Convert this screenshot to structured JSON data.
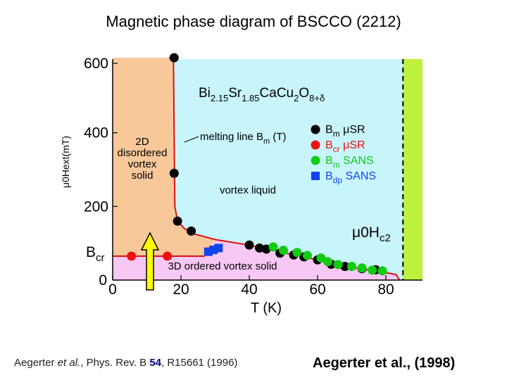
{
  "page": {
    "title": "Magnetic phase diagram of BSCCO (2212)",
    "citation": {
      "authors": "Aegerter ",
      "etal": "et al.",
      "journal": ",  Phys. Rev. B ",
      "volume": "54",
      "pages": ", R15661 (1996)"
    },
    "credit": "Aegerter et al., (1998)"
  },
  "chart_data": {
    "type": "scatter",
    "xlabel": "T (K)",
    "ylabel": "μ0Hext(mT)",
    "xlim": [
      0,
      90
    ],
    "ylim": [
      -20,
      620
    ],
    "xticks": [
      0,
      20,
      40,
      60,
      80
    ],
    "yticks": [
      0,
      200,
      400,
      600
    ],
    "grid": false,
    "legend_position": "right",
    "regions": {
      "disordered_solid": {
        "label_lines": [
          "2D",
          "disordered",
          "vortex",
          "solid"
        ],
        "color": "#f8c89a"
      },
      "vortex_liquid": {
        "label": "vortex liquid",
        "color": "#c8f4fc"
      },
      "ordered_solid": {
        "label": "3D ordered vortex solid",
        "color": "#f8c8f4"
      },
      "normal_band": {
        "color": "#bef03c"
      }
    },
    "annotations": {
      "compound": {
        "base": [
          "Bi",
          "Sr",
          "CaCu",
          "O"
        ],
        "sub": [
          "2.15",
          "1.85",
          "2",
          "8+δ"
        ]
      },
      "melting_line": {
        "text": "melting line B",
        "sub": "m",
        "suffix": " (T)"
      },
      "hc2": {
        "text": "μ0H",
        "sub": "c2"
      },
      "bcr": {
        "text": "B",
        "sub": "cr"
      }
    },
    "boundaries": {
      "melting_line": [
        [
          16.5,
          620
        ],
        [
          17.8,
          600
        ],
        [
          18.0,
          400
        ],
        [
          18.2,
          200
        ],
        [
          19,
          160
        ],
        [
          21,
          140
        ],
        [
          24,
          125
        ],
        [
          30,
          110
        ],
        [
          40,
          95
        ],
        [
          50,
          75
        ],
        [
          60,
          55
        ],
        [
          70,
          35
        ],
        [
          80,
          20
        ],
        [
          83,
          15
        ],
        [
          84,
          0
        ]
      ],
      "bcr_line": [
        [
          0,
          65
        ],
        [
          27,
          65
        ]
      ],
      "hc2": [
        [
          85,
          620
        ],
        [
          85,
          0
        ]
      ]
    },
    "series": [
      {
        "name": "B",
        "sub": "m",
        "method": " μSR",
        "color": "#000000",
        "marker": "circle",
        "points": [
          [
            18,
            620
          ],
          [
            18,
            290
          ],
          [
            19,
            160
          ],
          [
            23,
            133
          ],
          [
            40,
            95
          ],
          [
            43,
            87
          ],
          [
            45,
            84
          ],
          [
            49,
            73
          ],
          [
            53,
            68
          ],
          [
            56,
            63
          ],
          [
            60,
            55
          ],
          [
            64,
            43
          ],
          [
            68,
            37
          ],
          [
            73,
            31
          ],
          [
            77,
            28
          ]
        ]
      },
      {
        "name": "B",
        "sub": "cr",
        "method": " μSR",
        "color": "#ee1111",
        "marker": "circle",
        "points": [
          [
            5.5,
            65
          ],
          [
            16,
            65
          ]
        ]
      },
      {
        "name": "B",
        "sub": "m",
        "method": " SANS",
        "color": "#11cc11",
        "marker": "circle",
        "points": [
          [
            47,
            90
          ],
          [
            50,
            81
          ],
          [
            54,
            75
          ],
          [
            57,
            67
          ],
          [
            61,
            60
          ],
          [
            63,
            50
          ],
          [
            66,
            42
          ],
          [
            70,
            37
          ],
          [
            73,
            33
          ],
          [
            76,
            27
          ],
          [
            79,
            25
          ]
        ]
      },
      {
        "name": "B",
        "sub": "dp",
        "method": " SANS",
        "color": "#1144ee",
        "marker": "square",
        "points": [
          [
            28,
            77
          ],
          [
            29.5,
            82
          ],
          [
            31,
            87
          ]
        ]
      }
    ]
  }
}
